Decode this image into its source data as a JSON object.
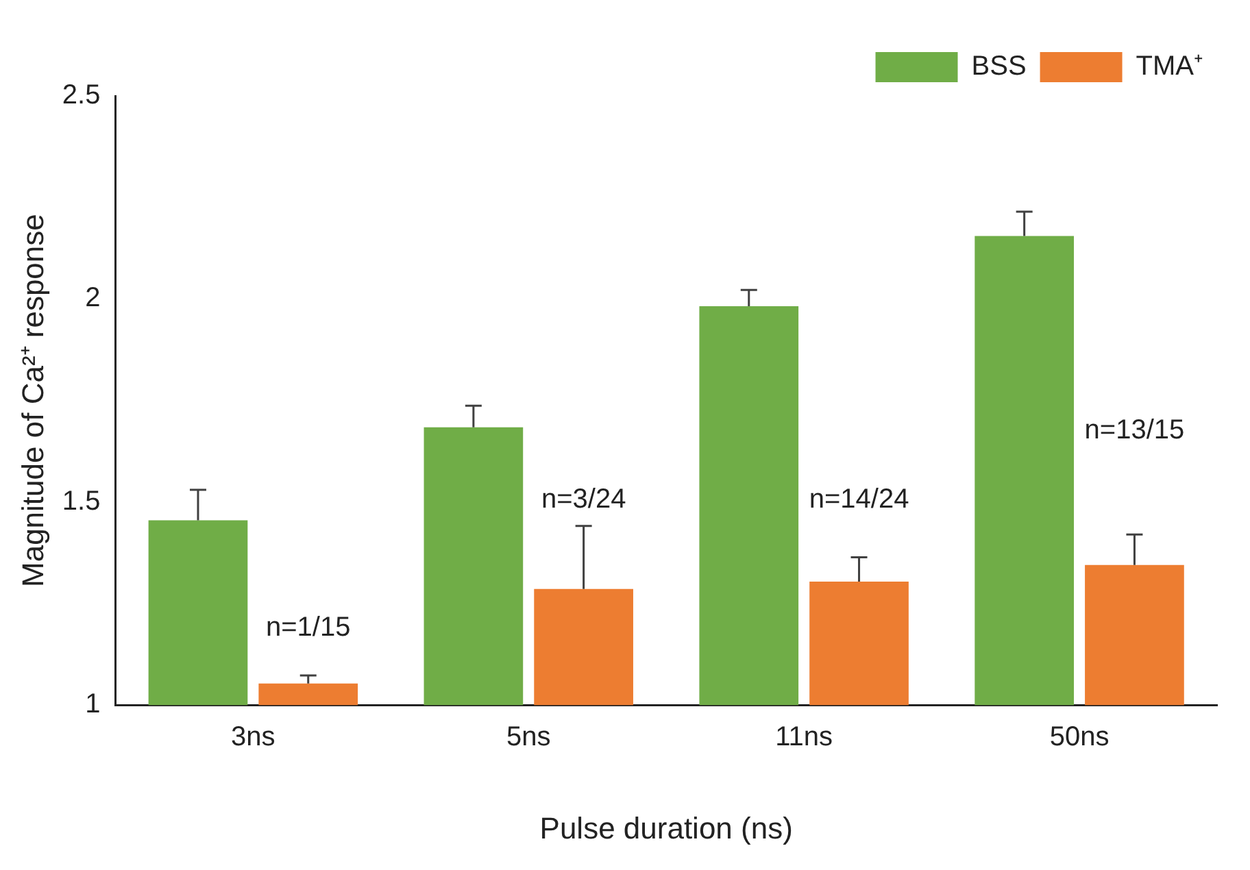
{
  "chart_data": {
    "type": "bar",
    "xlabel": "Pulse duration (ns)",
    "ylabel": "Magnitude of Ca²⁺ response",
    "categories": [
      "3ns",
      "5ns",
      "11ns",
      "50ns"
    ],
    "series": [
      {
        "name": "BSS",
        "color": "#70ad47",
        "values": [
          1.455,
          1.684,
          1.982,
          2.155
        ],
        "errors": [
          [
            1.455,
            1.53
          ],
          [
            1.684,
            1.737
          ],
          [
            1.982,
            2.022
          ],
          [
            2.155,
            2.215
          ]
        ]
      },
      {
        "name": "TMA⁺",
        "color": "#ed7d31",
        "values": [
          1.053,
          1.286,
          1.304,
          1.345
        ],
        "errors": [
          [
            1.053,
            1.073
          ],
          [
            1.286,
            1.441
          ],
          [
            1.304,
            1.364
          ],
          [
            1.345,
            1.42
          ]
        ]
      }
    ],
    "ylim": [
      1,
      2.5
    ],
    "yticks": [
      1,
      1.5,
      2,
      2.5
    ],
    "grid": false,
    "legend": "top right",
    "annotations": [
      {
        "text": "n=1/15",
        "x": "3ns",
        "y": 1.19
      },
      {
        "text": "n=3/24",
        "x": "5ns",
        "y": 1.505
      },
      {
        "text": "n=14/24",
        "x": "11ns",
        "y": 1.505
      },
      {
        "text": "n=13/15",
        "x": "50ns",
        "y": 1.675
      }
    ]
  }
}
